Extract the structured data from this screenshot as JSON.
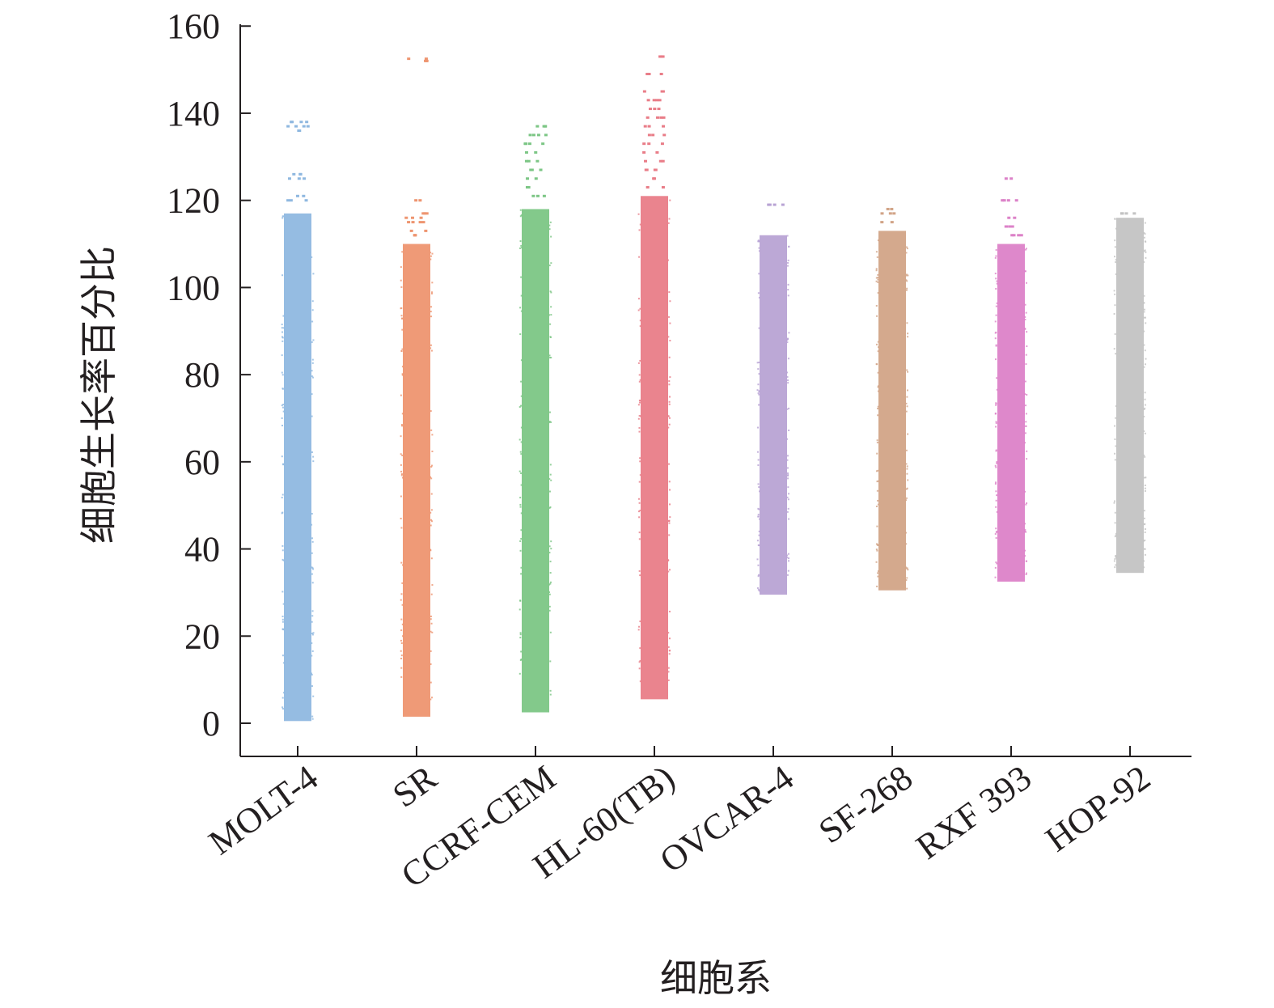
{
  "chart_data": {
    "type": "scatter",
    "subtype": "strip",
    "xlabel": "细胞系",
    "ylabel": "细胞生长率百分比",
    "ylim": [
      -7.5,
      160
    ],
    "yticks": [
      0,
      20,
      40,
      60,
      80,
      100,
      120,
      140,
      160
    ],
    "ytick_labels": [
      "0",
      "20",
      "40",
      "60",
      "80",
      "100",
      "120",
      "140",
      "160"
    ],
    "grid": false,
    "legend": "none",
    "categories": [
      "MOLT-4",
      "SR",
      "CCRF-CEM",
      "HL-60(TB)",
      "OVCAR-4",
      "SF-268",
      "RXF 393",
      "HOP-92"
    ],
    "series": [
      {
        "category": "MOLT-4",
        "color": "#8fb8e0",
        "min": 0.5,
        "dense_max": 117,
        "outliers": [
          120,
          121,
          125,
          126,
          136,
          137,
          138
        ]
      },
      {
        "category": "SR",
        "color": "#ee9570",
        "min": 1.5,
        "dense_max": 110,
        "outliers": [
          112,
          113,
          115,
          116,
          117,
          120,
          152,
          152.5
        ]
      },
      {
        "category": "CCRF-CEM",
        "color": "#7cc685",
        "min": 2.5,
        "dense_max": 118,
        "outliers": [
          121,
          123,
          125,
          127,
          129,
          131,
          133,
          135,
          137
        ]
      },
      {
        "category": "HL-60(TB)",
        "color": "#e97d88",
        "min": 5.5,
        "dense_max": 121,
        "outliers": [
          123,
          125,
          127,
          129,
          131,
          133,
          135,
          137,
          139,
          141,
          143,
          145,
          149,
          153
        ]
      },
      {
        "category": "OVCAR-4",
        "color": "#b8a3d4",
        "min": 29.5,
        "dense_max": 112,
        "outliers": [
          119
        ]
      },
      {
        "category": "SF-268",
        "color": "#d2a487",
        "min": 30.5,
        "dense_max": 113,
        "outliers": [
          115,
          117,
          118
        ]
      },
      {
        "category": "RXF 393",
        "color": "#dc82c8",
        "min": 32.5,
        "dense_max": 110,
        "outliers": [
          112,
          114,
          116,
          120,
          125
        ]
      },
      {
        "category": "HOP-92",
        "color": "#c3c3c3",
        "min": 34.5,
        "dense_max": 116,
        "outliers": [
          117
        ]
      }
    ]
  }
}
